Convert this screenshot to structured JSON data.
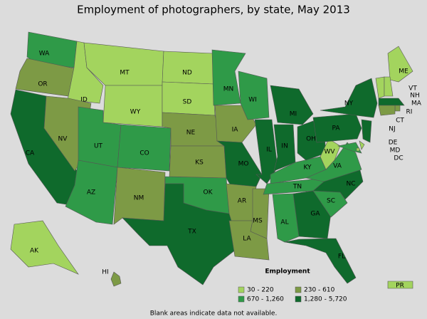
{
  "title": "Employment of photographers, by state, May 2013",
  "legend": {
    "title": "Employment",
    "items": [
      {
        "label": "30 - 220",
        "color": "#a3d45e"
      },
      {
        "label": "230 - 610",
        "color": "#7d9a45"
      },
      {
        "label": "670 - 1,260",
        "color": "#2f9a48"
      },
      {
        "label": "1,280 - 5,720",
        "color": "#0f6a2c"
      }
    ]
  },
  "states": [
    {
      "label": "WA",
      "employment": "670 - 1,260"
    },
    {
      "label": "OR",
      "employment": "230 - 610"
    },
    {
      "label": "CA",
      "employment": "1,280 - 5,720"
    },
    {
      "label": "ID",
      "employment": "30 - 220"
    },
    {
      "label": "NV",
      "employment": "230 - 610"
    },
    {
      "label": "MT",
      "employment": "30 - 220"
    },
    {
      "label": "WY",
      "employment": "30 - 220"
    },
    {
      "label": "UT",
      "employment": "670 - 1,260"
    },
    {
      "label": "AZ",
      "employment": "670 - 1,260"
    },
    {
      "label": "CO",
      "employment": "670 - 1,260"
    },
    {
      "label": "NM",
      "employment": "230 - 610"
    },
    {
      "label": "ND",
      "employment": "30 - 220"
    },
    {
      "label": "SD",
      "employment": "30 - 220"
    },
    {
      "label": "NE",
      "employment": "230 - 610"
    },
    {
      "label": "KS",
      "employment": "230 - 610"
    },
    {
      "label": "OK",
      "employment": "670 - 1,260"
    },
    {
      "label": "TX",
      "employment": "1,280 - 5,720"
    },
    {
      "label": "MN",
      "employment": "670 - 1,260"
    },
    {
      "label": "IA",
      "employment": "230 - 610"
    },
    {
      "label": "MO",
      "employment": "1,280 - 5,720"
    },
    {
      "label": "AR",
      "employment": "230 - 610"
    },
    {
      "label": "LA",
      "employment": "230 - 610"
    },
    {
      "label": "WI",
      "employment": "670 - 1,260"
    },
    {
      "label": "IL",
      "employment": "1,280 - 5,720"
    },
    {
      "label": "MS",
      "employment": "230 - 610"
    },
    {
      "label": "MI",
      "employment": "1,280 - 5,720"
    },
    {
      "label": "IN",
      "employment": "1,280 - 5,720"
    },
    {
      "label": "KY",
      "employment": "670 - 1,260"
    },
    {
      "label": "TN",
      "employment": "670 - 1,260"
    },
    {
      "label": "AL",
      "employment": "670 - 1,260"
    },
    {
      "label": "OH",
      "employment": "1,280 - 5,720"
    },
    {
      "label": "GA",
      "employment": "1,280 - 5,720"
    },
    {
      "label": "FL",
      "employment": "1,280 - 5,720"
    },
    {
      "label": "SC",
      "employment": "670 - 1,260"
    },
    {
      "label": "NC",
      "employment": "1,280 - 5,720"
    },
    {
      "label": "VA",
      "employment": "670 - 1,260"
    },
    {
      "label": "WV",
      "employment": "30 - 220"
    },
    {
      "label": "PA",
      "employment": "1,280 - 5,720"
    },
    {
      "label": "NY",
      "employment": "1,280 - 5,720"
    },
    {
      "label": "ME",
      "employment": "30 - 220"
    },
    {
      "label": "VT",
      "employment": "30 - 220"
    },
    {
      "label": "NH",
      "employment": "30 - 220"
    },
    {
      "label": "MA",
      "employment": "1,280 - 5,720"
    },
    {
      "label": "RI",
      "employment": "230 - 610"
    },
    {
      "label": "CT",
      "employment": "230 - 610"
    },
    {
      "label": "NJ",
      "employment": "1,280 - 5,720"
    },
    {
      "label": "DE",
      "employment": "30 - 220"
    },
    {
      "label": "MD",
      "employment": "670 - 1,260"
    },
    {
      "label": "DC",
      "employment": "30 - 220"
    },
    {
      "label": "AK",
      "employment": "30 - 220"
    },
    {
      "label": "HI",
      "employment": "230 - 610"
    },
    {
      "label": "PR",
      "employment": "30 - 220"
    }
  ],
  "footnote": "Blank areas indicate data not available."
}
